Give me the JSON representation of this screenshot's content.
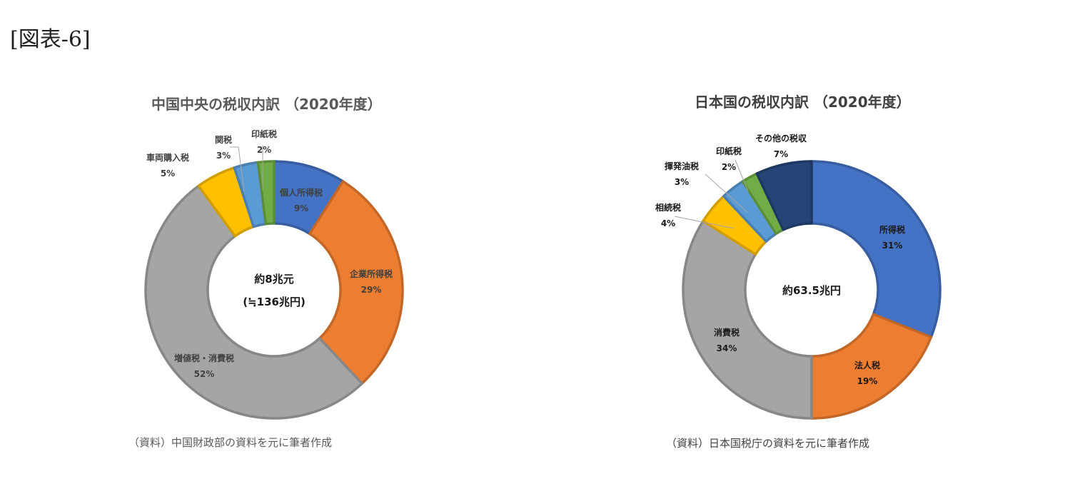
{
  "figure_label": "[図表-6]",
  "chart_data": [
    {
      "type": "pie",
      "title": "中国中央の税収内訳 （2020年度）",
      "center_text": [
        "約8兆元",
        "(≒136兆円)"
      ],
      "source": "（資料）中国財政部の資料を元に筆者作成",
      "unit": "%",
      "slices": [
        {
          "name": "個人所得税",
          "value": 9,
          "color": "#4472C4"
        },
        {
          "name": "企業所得税",
          "value": 29,
          "color": "#ED7D31"
        },
        {
          "name": "増値税・消費税",
          "value": 52,
          "color": "#A5A5A5"
        },
        {
          "name": "車両購入税",
          "value": 5,
          "color": "#FFC000"
        },
        {
          "name": "関税",
          "value": 3,
          "color": "#5B9BD5"
        },
        {
          "name": "印紙税",
          "value": 2,
          "color": "#70AD47"
        }
      ]
    },
    {
      "type": "pie",
      "title": "日本国の税収内訳 （2020年度）",
      "center_text": [
        "約63.5兆円"
      ],
      "source": "（資料）日本国税庁の資料を元に筆者作成",
      "unit": "%",
      "slices": [
        {
          "name": "所得税",
          "value": 31,
          "color": "#4472C4"
        },
        {
          "name": "法人税",
          "value": 19,
          "color": "#ED7D31"
        },
        {
          "name": "消費税",
          "value": 34,
          "color": "#A5A5A5"
        },
        {
          "name": "相続税",
          "value": 4,
          "color": "#FFC000"
        },
        {
          "name": "揮発油税",
          "value": 3,
          "color": "#5B9BD5"
        },
        {
          "name": "印紙税",
          "value": 2,
          "color": "#70AD47"
        },
        {
          "name": "その他の税収",
          "value": 7,
          "color": "#264478"
        }
      ]
    }
  ]
}
